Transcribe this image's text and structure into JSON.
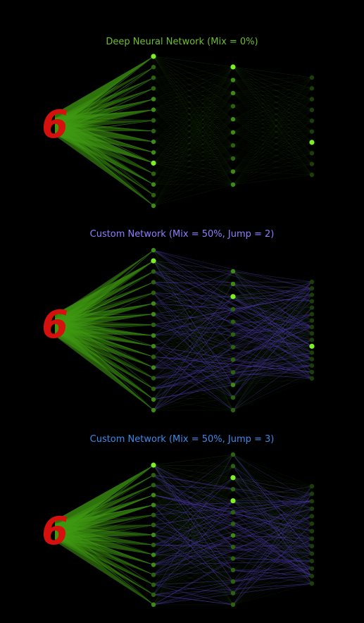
{
  "colors": {
    "background": "#000000",
    "intra_edge": "#3f9a12",
    "skip_edge": "#4b35a8",
    "node_active": "#7cf025",
    "node_mid": "#3d8a16",
    "node_dim": "#1a3d0a",
    "digit": "#d4110c"
  },
  "input_digit": {
    "label": "6"
  },
  "panels": [
    {
      "title": "Deep Neural Network (Mix = 0%)",
      "title_color": "#6dbf2a",
      "layers": [
        [
          1.0,
          0.3,
          0.4,
          0.4,
          0.5,
          0.8,
          0.3,
          0.3,
          0.6,
          0.5,
          0.9,
          0.4,
          0.6,
          0.3,
          0.6
        ],
        [
          1.0,
          0.6,
          0.6,
          0.3,
          0.6,
          0.6,
          0.3,
          0.3,
          0.6,
          0.6
        ],
        [
          0.1,
          0.1,
          0.1,
          0.1,
          0.1,
          0.1,
          1.0,
          0.1,
          0.1,
          0.1
        ]
      ],
      "mix": 0,
      "jump": 0
    },
    {
      "title": "Custom Network (Mix = 50%, Jump = 2)",
      "title_color": "#8d7fff",
      "layers": [
        [
          0.5,
          1.0,
          0.4,
          0.3,
          0.3,
          0.6,
          0.5,
          0.3,
          0.6,
          0.5,
          0.4,
          0.5,
          0.3,
          0.3,
          0.6,
          0.6
        ],
        [
          0.6,
          0.5,
          0.9,
          0.3,
          0.3,
          0.3,
          0.4,
          0.3,
          0.3,
          0.6,
          0.3,
          0.3
        ],
        [
          0.1,
          0.1,
          0.1,
          0.1,
          0.1,
          0.1,
          0.1,
          0.1,
          0.1,
          0.1,
          1.0,
          0.1,
          0.1,
          0.1,
          0.1,
          0.1
        ]
      ],
      "mix": 0.5,
      "jump": 2
    },
    {
      "title": "Custom Network (Mix = 50%, Jump = 3)",
      "title_color": "#3c8ae8",
      "layers": [
        [
          1.0,
          0.3,
          0.4,
          0.6,
          0.8,
          0.3,
          0.3,
          0.6,
          0.4,
          0.5,
          0.5,
          0.3,
          0.3,
          0.3,
          0.5
        ],
        [
          0.4,
          0.3,
          0.9,
          0.3,
          0.9,
          0.3,
          0.3,
          0.5,
          0.3,
          0.3,
          0.3,
          0.3,
          0.3,
          0.4
        ],
        [
          0.1,
          0.1,
          0.1,
          0.1,
          0.1,
          0.1,
          0.1,
          0.1,
          0.1,
          0.1,
          0.1,
          0.1,
          0.1,
          0.1
        ]
      ],
      "mix": 0.5,
      "jump": 3
    }
  ]
}
